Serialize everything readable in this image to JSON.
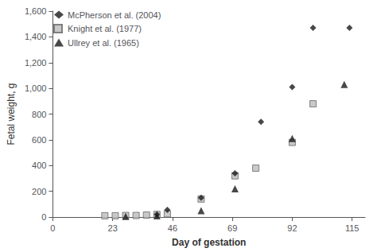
{
  "chart_data": {
    "type": "scatter",
    "xlabel": "Day of gestation",
    "ylabel": "Fetal weight, g",
    "series": [
      {
        "name": "McPherson et al. (2004)",
        "color": "#1a1a1a",
        "marker": "diamond",
        "x": [
          40,
          44,
          57,
          70,
          80,
          92,
          100,
          114
        ],
        "values": [
          20,
          55,
          150,
          340,
          740,
          1010,
          1470,
          1470
        ]
      },
      {
        "name": "Knight et al. (1977)",
        "color": "#bbbbbb",
        "marker": "square",
        "x": [
          20,
          24,
          28,
          32,
          36,
          40,
          44,
          57,
          70,
          78,
          92,
          100
        ],
        "values": [
          10,
          10,
          12,
          12,
          15,
          20,
          25,
          140,
          320,
          380,
          580,
          880
        ]
      },
      {
        "name": "Ullrey et al. (1965)",
        "color": "#1a1a1a",
        "marker": "triangle",
        "x": [
          28,
          40,
          57,
          70,
          92,
          112
        ],
        "values": [
          5,
          10,
          50,
          220,
          610,
          1030
        ]
      }
    ],
    "xlim": [
      0,
      120
    ],
    "ylim": [
      0,
      1600
    ],
    "xticks": [
      0,
      23,
      46,
      69,
      92,
      115
    ],
    "yticks": [
      0,
      200,
      400,
      600,
      800,
      1000,
      1200,
      1400,
      1600
    ],
    "grid": false,
    "legend": "upper left"
  }
}
